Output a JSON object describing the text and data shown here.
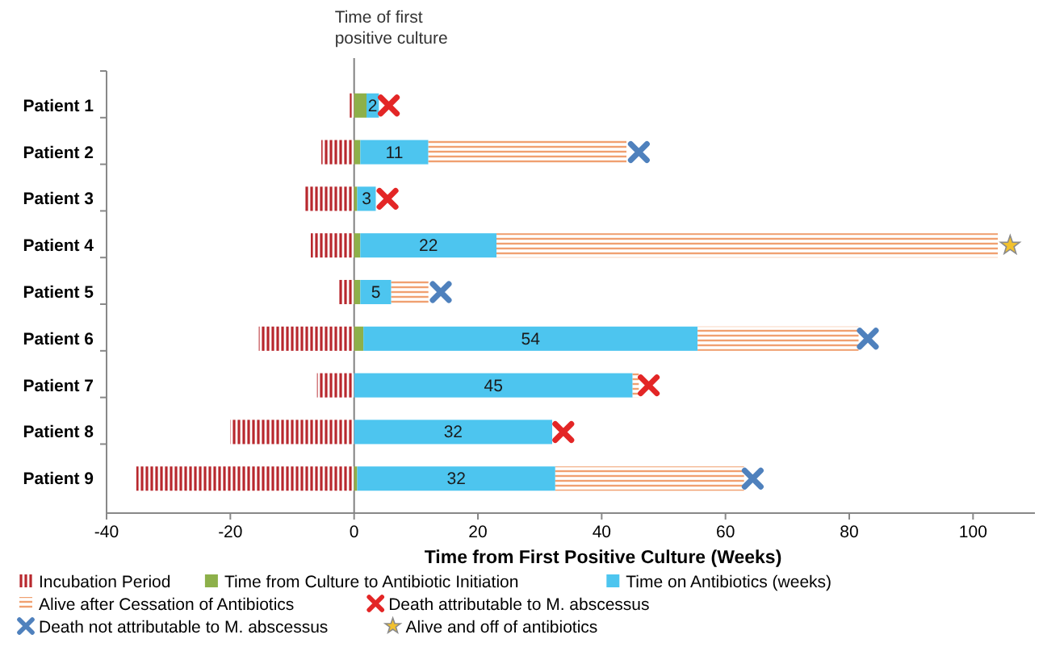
{
  "chart_data": {
    "type": "bar",
    "orientation": "horizontal",
    "stacked": true,
    "categories": [
      "Patient 1",
      "Patient 2",
      "Patient 3",
      "Patient 4",
      "Patient 5",
      "Patient 6",
      "Patient 7",
      "Patient 8",
      "Patient 9"
    ],
    "series": [
      {
        "name": "Incubation Period",
        "color": "#b8282e",
        "values": [
          -0.7,
          -5.3,
          -8,
          -7,
          -2.6,
          -15.4,
          -6,
          -20,
          -35.2
        ]
      },
      {
        "name": "Time from Culture to Antibiotic Initiation",
        "color": "#8db04a",
        "values": [
          2,
          1,
          0.5,
          1,
          1,
          1.5,
          0,
          0,
          0.5
        ]
      },
      {
        "name": "Time on Antibiotics (weeks)",
        "color": "#4dc5ef",
        "values": [
          2,
          11,
          3,
          22,
          5,
          54,
          45,
          32,
          32
        ],
        "value_labels": [
          "2",
          "11",
          "3",
          "22",
          "5",
          "54",
          "45",
          "32",
          "32"
        ]
      },
      {
        "name": "Alive after Cessation of Antibiotics",
        "color": "#f0a070",
        "values": [
          0,
          32,
          0,
          81,
          6,
          26,
          1,
          0,
          30.5
        ]
      },
      {
        "name": "Death attributable to M. abscessus",
        "type": "scatter",
        "marker": "cross",
        "color": "#e32626",
        "values": [
          5.6,
          null,
          5.4,
          null,
          null,
          null,
          47.6,
          33.8,
          null
        ]
      },
      {
        "name": "Death not attributable to M. abscessus",
        "type": "scatter",
        "marker": "cross",
        "color": "#4f81bd",
        "values": [
          null,
          46,
          null,
          null,
          14,
          83,
          null,
          null,
          64.4
        ]
      },
      {
        "name": "Alive and off of antibiotics",
        "type": "scatter",
        "marker": "star",
        "color": "#f2c12e",
        "values": [
          null,
          null,
          null,
          106,
          null,
          null,
          null,
          null,
          null
        ]
      }
    ],
    "xlim": [
      -40,
      110
    ],
    "xticks": [
      -40,
      -20,
      0,
      20,
      40,
      60,
      80,
      100
    ],
    "xlabel": "Time from First Positive Culture (Weeks)",
    "ref_lines": [
      {
        "axis": "x",
        "value": 0,
        "label": "Time of first positive culture",
        "color": "#808080"
      }
    ],
    "legend": "bottom",
    "grid": false
  }
}
